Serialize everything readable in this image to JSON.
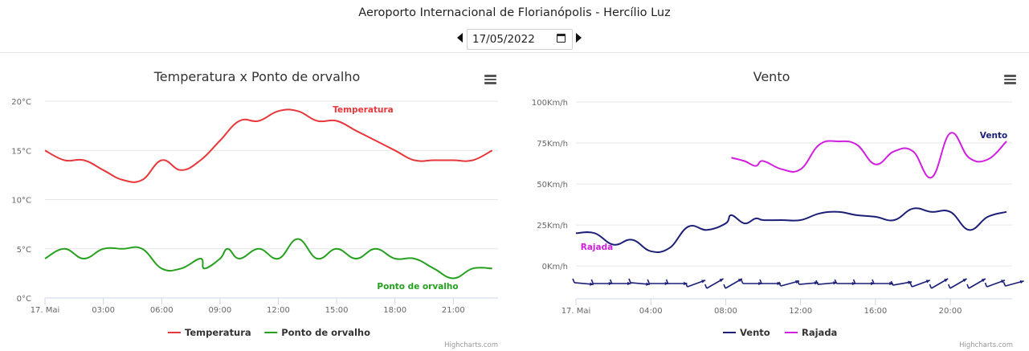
{
  "header": {
    "title": "Aeroporto Internacional de Florianópolis - Hercílio Luz",
    "date": "17/05/2022"
  },
  "colors": {
    "temperature": "#e8363a",
    "dewpoint": "#26a11f",
    "wind": "#1b1f78",
    "gust": "#d11ee0"
  },
  "icons": [
    "chevron-left-icon",
    "chevron-right-icon",
    "calendar-icon",
    "hamburger-menu-icon",
    "wind-barb-icon"
  ],
  "credits": "Highcharts.com",
  "chart_data": [
    {
      "type": "line",
      "title": "Temperatura x Ponto de orvalho",
      "x_tick_labels": [
        "17. Mai",
        "03:00",
        "06:00",
        "09:00",
        "12:00",
        "15:00",
        "18:00",
        "21:00"
      ],
      "x_tick_hours": [
        0,
        3,
        6,
        9,
        12,
        15,
        18,
        21
      ],
      "xlim": [
        0,
        23.3
      ],
      "y_tick_labels": [
        "0°C",
        "5°C",
        "10°C",
        "15°C",
        "20°C"
      ],
      "y_ticks": [
        0,
        5,
        10,
        15,
        20
      ],
      "ylim": [
        0,
        20
      ],
      "legend": "bottom-center",
      "series": [
        {
          "name": "Temperatura",
          "label": "Temperatura",
          "color": "#e8363a",
          "x": [
            0,
            1,
            2,
            3,
            4,
            5,
            6,
            7,
            8,
            9,
            10,
            11,
            12,
            13,
            14,
            15,
            16,
            17,
            18,
            19,
            20,
            21,
            22,
            23
          ],
          "y": [
            15,
            14,
            14,
            13,
            12,
            12,
            14,
            13,
            14,
            16,
            18,
            18,
            19,
            19,
            18,
            18,
            17,
            16,
            15,
            14,
            14,
            14,
            14,
            15
          ]
        },
        {
          "name": "Ponto de orvalho",
          "label": "Ponto de orvalho",
          "color": "#26a11f",
          "x": [
            0,
            1,
            2,
            3,
            4,
            5,
            6,
            7,
            8,
            8.2,
            9,
            9.4,
            10,
            11,
            12,
            13,
            14,
            15,
            16,
            17,
            18,
            19,
            20,
            21,
            22,
            23
          ],
          "y": [
            4,
            5,
            4,
            5,
            5,
            5,
            3,
            3,
            4,
            3,
            4,
            5,
            4,
            5,
            4,
            6,
            4,
            5,
            4,
            5,
            4,
            4,
            3,
            2,
            3,
            3
          ]
        }
      ]
    },
    {
      "type": "line",
      "title": "Vento",
      "x_tick_labels": [
        "17. Mai",
        "04:00",
        "08:00",
        "12:00",
        "16:00",
        "20:00"
      ],
      "x_tick_hours": [
        0,
        4,
        8,
        12,
        16,
        20
      ],
      "xlim": [
        0,
        23.3
      ],
      "y_tick_labels": [
        "0Km/h",
        "25Km/h",
        "50Km/h",
        "75Km/h",
        "100Km/h"
      ],
      "y_ticks": [
        0,
        25,
        50,
        75,
        100
      ],
      "ylim": [
        -20,
        100
      ],
      "legend": "bottom-center",
      "series": [
        {
          "name": "Vento",
          "label": "Vento",
          "color": "#1b1f78",
          "x": [
            0,
            1,
            2,
            3,
            4,
            5,
            6,
            7,
            8,
            8.3,
            9,
            9.6,
            10,
            11,
            12,
            13,
            14,
            15,
            16,
            17,
            18,
            19,
            20,
            21,
            22,
            23
          ],
          "y": [
            20,
            20,
            13,
            16,
            9,
            11,
            24,
            22,
            26,
            31,
            26,
            29,
            28,
            28,
            28,
            32,
            33,
            31,
            30,
            28,
            35,
            33,
            33,
            22,
            30,
            33
          ]
        },
        {
          "name": "Rajada",
          "label": "Rajada",
          "color": "#d11ee0",
          "x": [
            8.3,
            9,
            9.6,
            10,
            11,
            12,
            13,
            14,
            15,
            16,
            17,
            18,
            19,
            20,
            21,
            22,
            23
          ],
          "y": [
            66,
            64,
            61,
            64,
            59,
            59,
            74,
            76,
            74,
            62,
            70,
            70,
            54,
            81,
            66,
            65,
            76
          ]
        }
      ],
      "wind_direction_barbs_count": 24
    }
  ]
}
